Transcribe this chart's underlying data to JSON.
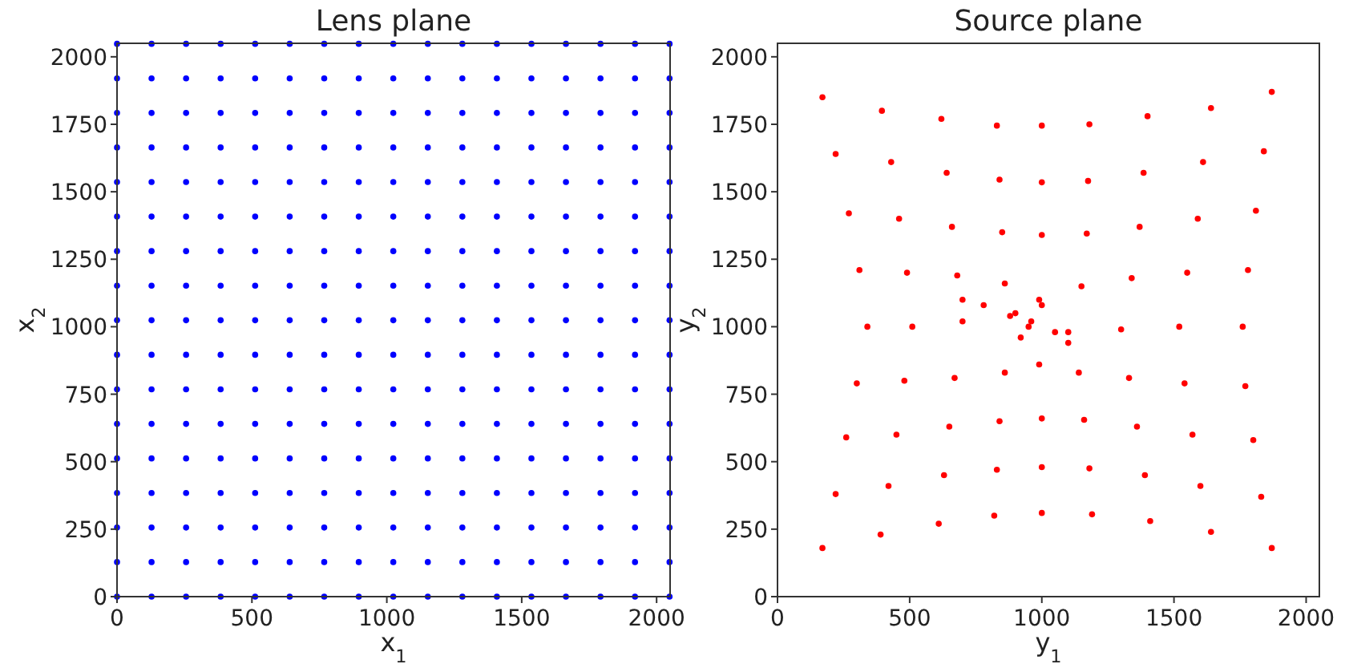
{
  "chart_data": [
    {
      "type": "scatter",
      "title": "Lens plane",
      "xlabel": "x$_{1}$",
      "ylabel": "x$_{2}$",
      "xlim": [
        0,
        2050
      ],
      "ylim": [
        0,
        2050
      ],
      "xticks": [
        0,
        500,
        1000,
        1500,
        2000
      ],
      "yticks": [
        0,
        250,
        500,
        750,
        1000,
        1250,
        1500,
        1750,
        2000
      ],
      "marker": "circle",
      "series": [
        {
          "color": "#0000ff",
          "x": [
            0,
            128,
            256,
            384,
            512,
            640,
            768,
            896,
            1024,
            1152,
            1280,
            1408,
            1536,
            1664,
            1792,
            1920,
            2048,
            0,
            128,
            256,
            384,
            512,
            640,
            768,
            896,
            1024,
            1152,
            1280,
            1408,
            1536,
            1664,
            1792,
            1920,
            2048,
            0,
            128,
            256,
            384,
            512,
            640,
            768,
            896,
            1024,
            1152,
            1280,
            1408,
            1536,
            1664,
            1792,
            1920,
            2048,
            0,
            128,
            256,
            384,
            512,
            640,
            768,
            896,
            1024,
            1152,
            1280,
            1408,
            1536,
            1664,
            1792,
            1920,
            2048,
            0,
            128,
            256,
            384,
            512,
            640,
            768,
            896,
            1024,
            1152,
            1280,
            1408,
            1536,
            1664,
            1792,
            1920,
            2048,
            0,
            128,
            256,
            384,
            512,
            640,
            768,
            896,
            1024,
            1152,
            1280,
            1408,
            1536,
            1664,
            1792,
            1920,
            2048,
            0,
            128,
            256,
            384,
            512,
            640,
            768,
            896,
            1024,
            1152,
            1280,
            1408,
            1536,
            1664,
            1792,
            1920,
            2048,
            0,
            128,
            256,
            384,
            512,
            640,
            768,
            896,
            1024,
            1152,
            1280,
            1408,
            1536,
            1664,
            1792,
            1920,
            2048,
            0,
            128,
            256,
            384,
            512,
            640,
            768,
            896,
            1024,
            1152,
            1280,
            1408,
            1536,
            1664,
            1792,
            1920,
            2048,
            0,
            128,
            256,
            384,
            512,
            640,
            768,
            896,
            1024,
            1152,
            1280,
            1408,
            1536,
            1664,
            1792,
            1920,
            2048,
            0,
            128,
            256,
            384,
            512,
            640,
            768,
            896,
            1024,
            1152,
            1280,
            1408,
            1536,
            1664,
            1792,
            1920,
            2048,
            0,
            128,
            256,
            384,
            512,
            640,
            768,
            896,
            1024,
            1152,
            1280,
            1408,
            1536,
            1664,
            1792,
            1920,
            2048,
            0,
            128,
            256,
            384,
            512,
            640,
            768,
            896,
            1024,
            1152,
            1280,
            1408,
            1536,
            1664,
            1792,
            1920,
            2048,
            0,
            128,
            256,
            384,
            512,
            640,
            768,
            896,
            1024,
            1152,
            1280,
            1408,
            1536,
            1664,
            1792,
            1920,
            2048,
            0,
            128,
            256,
            384,
            512,
            640,
            768,
            896,
            1024,
            1152,
            1280,
            1408,
            1536,
            1664,
            1792,
            1920,
            2048,
            0,
            128,
            256,
            384,
            512,
            640,
            768,
            896,
            1024,
            1152,
            1280,
            1408,
            1536,
            1664,
            1792,
            1920,
            2048,
            0,
            128,
            256,
            384,
            512,
            640,
            768,
            896,
            1024,
            1152,
            1280,
            1408,
            1536,
            1664,
            1792,
            1920,
            2048
          ],
          "values": [
            0,
            0,
            0,
            0,
            0,
            0,
            0,
            0,
            0,
            0,
            0,
            0,
            0,
            0,
            0,
            0,
            0,
            128,
            128,
            128,
            128,
            128,
            128,
            128,
            128,
            128,
            128,
            128,
            128,
            128,
            128,
            128,
            128,
            128,
            256,
            256,
            256,
            256,
            256,
            256,
            256,
            256,
            256,
            256,
            256,
            256,
            256,
            256,
            256,
            256,
            256,
            384,
            384,
            384,
            384,
            384,
            384,
            384,
            384,
            384,
            384,
            384,
            384,
            384,
            384,
            384,
            384,
            384,
            512,
            512,
            512,
            512,
            512,
            512,
            512,
            512,
            512,
            512,
            512,
            512,
            512,
            512,
            512,
            512,
            512,
            640,
            640,
            640,
            640,
            640,
            640,
            640,
            640,
            640,
            640,
            640,
            640,
            640,
            640,
            640,
            640,
            640,
            768,
            768,
            768,
            768,
            768,
            768,
            768,
            768,
            768,
            768,
            768,
            768,
            768,
            768,
            768,
            768,
            768,
            896,
            896,
            896,
            896,
            896,
            896,
            896,
            896,
            896,
            896,
            896,
            896,
            896,
            896,
            896,
            896,
            896,
            1024,
            1024,
            1024,
            1024,
            1024,
            1024,
            1024,
            1024,
            1024,
            1024,
            1024,
            1024,
            1024,
            1024,
            1024,
            1024,
            1024,
            1152,
            1152,
            1152,
            1152,
            1152,
            1152,
            1152,
            1152,
            1152,
            1152,
            1152,
            1152,
            1152,
            1152,
            1152,
            1152,
            1152,
            1280,
            1280,
            1280,
            1280,
            1280,
            1280,
            1280,
            1280,
            1280,
            1280,
            1280,
            1280,
            1280,
            1280,
            1280,
            1280,
            1280,
            1408,
            1408,
            1408,
            1408,
            1408,
            1408,
            1408,
            1408,
            1408,
            1408,
            1408,
            1408,
            1408,
            1408,
            1408,
            1408,
            1408,
            1536,
            1536,
            1536,
            1536,
            1536,
            1536,
            1536,
            1536,
            1536,
            1536,
            1536,
            1536,
            1536,
            1536,
            1536,
            1536,
            1536,
            1664,
            1664,
            1664,
            1664,
            1664,
            1664,
            1664,
            1664,
            1664,
            1664,
            1664,
            1664,
            1664,
            1664,
            1664,
            1664,
            1664,
            1792,
            1792,
            1792,
            1792,
            1792,
            1792,
            1792,
            1792,
            1792,
            1792,
            1792,
            1792,
            1792,
            1792,
            1792,
            1792,
            1792,
            1920,
            1920,
            1920,
            1920,
            1920,
            1920,
            1920,
            1920,
            1920,
            1920,
            1920,
            1920,
            1920,
            1920,
            1920,
            1920,
            1920,
            2048,
            2048,
            2048,
            2048,
            2048,
            2048,
            2048,
            2048,
            2048,
            2048,
            2048,
            2048,
            2048,
            2048,
            2048,
            2048,
            2048
          ]
        }
      ]
    },
    {
      "type": "scatter",
      "title": "Source plane",
      "xlabel": "y$_{1}$",
      "ylabel": "y$_{2}$",
      "xlim": [
        0,
        2050
      ],
      "ylim": [
        0,
        2050
      ],
      "xticks": [
        0,
        500,
        1000,
        1500,
        2000
      ],
      "yticks": [
        0,
        250,
        500,
        750,
        1000,
        1250,
        1500,
        1750,
        2000
      ],
      "marker": "circle",
      "series": [
        {
          "color": "#ff0000",
          "x": [
            170,
            390,
            610,
            820,
            1000,
            1190,
            1410,
            1640,
            1870,
            220,
            420,
            630,
            830,
            1000,
            1180,
            1390,
            1600,
            1830,
            260,
            450,
            650,
            840,
            1000,
            1160,
            1360,
            1570,
            1800,
            300,
            480,
            670,
            860,
            990,
            1140,
            1330,
            1540,
            1770,
            340,
            510,
            700,
            880,
            950,
            1100,
            1300,
            1520,
            1760,
            310,
            490,
            680,
            860,
            990,
            1150,
            1340,
            1550,
            1780,
            270,
            460,
            660,
            850,
            1000,
            1170,
            1370,
            1590,
            1810,
            220,
            430,
            640,
            840,
            1000,
            1175,
            1385,
            1610,
            1840,
            170,
            395,
            620,
            830,
            1000,
            1180,
            1400,
            1640,
            1870,
            900,
            960,
            1000,
            920,
            1050,
            1100,
            780,
            700
          ],
          "values": [
            180,
            230,
            270,
            300,
            310,
            305,
            280,
            240,
            180,
            380,
            410,
            450,
            470,
            480,
            475,
            450,
            410,
            370,
            590,
            600,
            630,
            650,
            660,
            655,
            630,
            600,
            580,
            790,
            800,
            810,
            830,
            860,
            830,
            810,
            790,
            780,
            1000,
            1000,
            1020,
            1040,
            1000,
            980,
            990,
            1000,
            1000,
            1210,
            1200,
            1190,
            1160,
            1100,
            1150,
            1180,
            1200,
            1210,
            1420,
            1400,
            1370,
            1350,
            1340,
            1345,
            1370,
            1400,
            1430,
            1640,
            1610,
            1570,
            1545,
            1535,
            1540,
            1570,
            1610,
            1650,
            1850,
            1800,
            1770,
            1745,
            1745,
            1750,
            1780,
            1810,
            1870,
            1050,
            1020,
            1080,
            960,
            980,
            940,
            1080,
            1100
          ]
        }
      ]
    }
  ]
}
